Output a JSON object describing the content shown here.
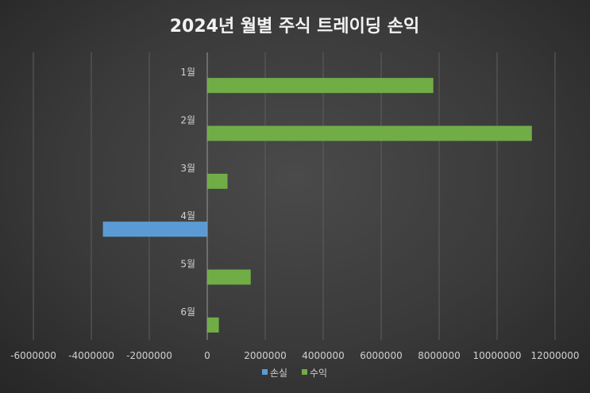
{
  "chart_data": {
    "type": "bar",
    "orientation": "horizontal",
    "title": "2024년 월별 주식 트레이딩 손익",
    "categories": [
      "1월",
      "2월",
      "3월",
      "4월",
      "5월",
      "6월"
    ],
    "series": [
      {
        "name": "손실",
        "color": "#5b9bd5",
        "values": [
          0,
          0,
          0,
          -3600000,
          0,
          0
        ]
      },
      {
        "name": "수익",
        "color": "#70ad47",
        "values": [
          7800000,
          11200000,
          700000,
          0,
          1500000,
          400000
        ]
      }
    ],
    "xlim": [
      -6000000,
      12000000
    ],
    "xticks": [
      -6000000,
      -4000000,
      -2000000,
      0,
      2000000,
      4000000,
      6000000,
      8000000,
      10000000,
      12000000
    ],
    "xtick_labels": [
      "-6000000",
      "-4000000",
      "-2000000",
      "0",
      "2000000",
      "4000000",
      "6000000",
      "8000000",
      "10000000",
      "12000000"
    ],
    "grid": true,
    "legend_position": "bottom"
  }
}
